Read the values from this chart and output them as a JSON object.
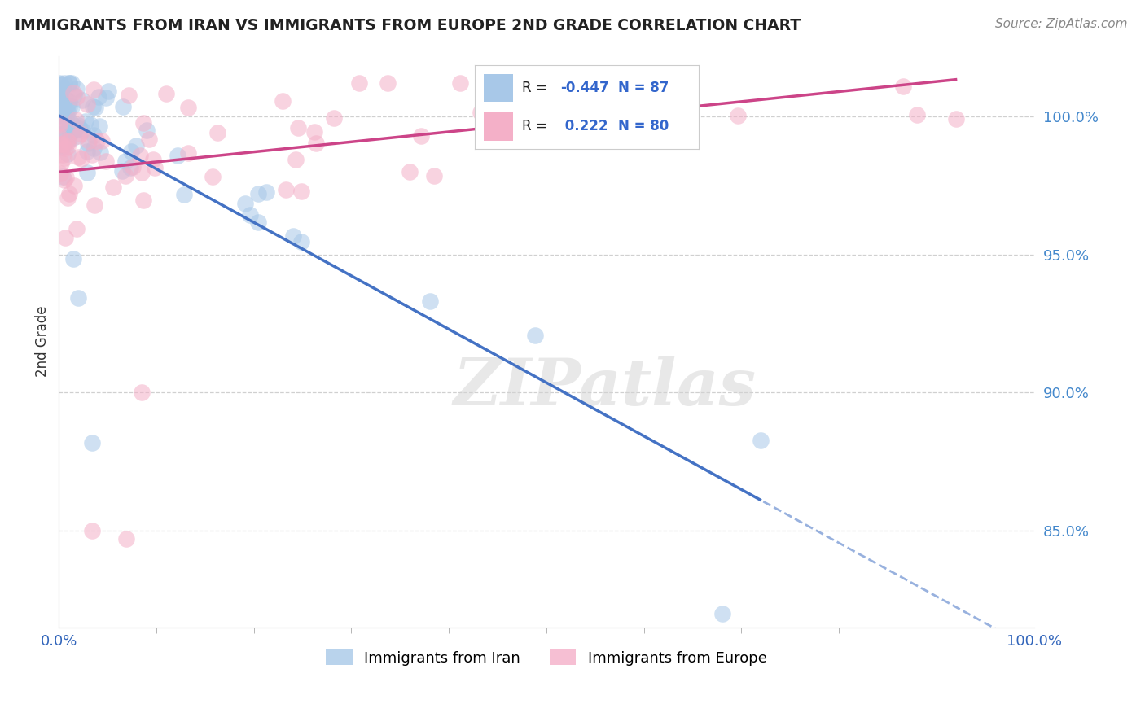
{
  "title": "IMMIGRANTS FROM IRAN VS IMMIGRANTS FROM EUROPE 2ND GRADE CORRELATION CHART",
  "source": "Source: ZipAtlas.com",
  "ylabel": "2nd Grade",
  "y_tick_labels": [
    "85.0%",
    "90.0%",
    "95.0%",
    "100.0%"
  ],
  "y_tick_values": [
    0.85,
    0.9,
    0.95,
    1.0
  ],
  "legend_label_blue": "Immigrants from Iran",
  "legend_label_pink": "Immigrants from Europe",
  "R_blue": -0.447,
  "N_blue": 87,
  "R_pink": 0.222,
  "N_pink": 80,
  "blue_color": "#a8c8e8",
  "pink_color": "#f4b0c8",
  "blue_line_color": "#4472c4",
  "pink_line_color": "#cc4488",
  "background_color": "#ffffff",
  "xlim": [
    0.0,
    1.0
  ],
  "ylim": [
    0.815,
    1.022
  ]
}
